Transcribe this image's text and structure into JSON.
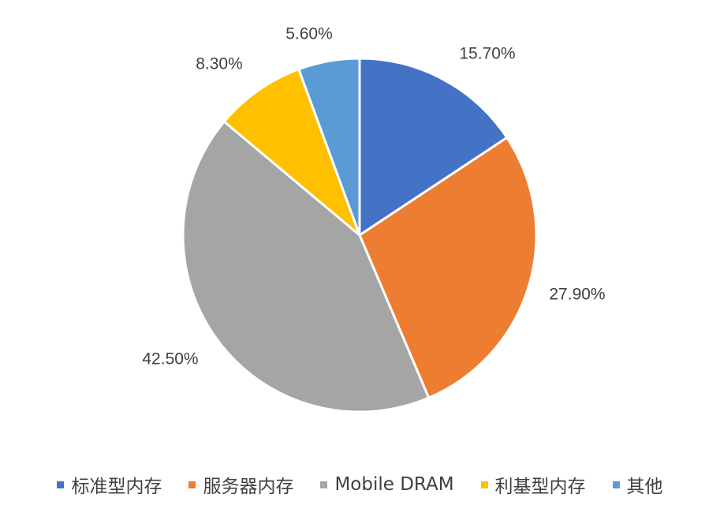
{
  "chart_data": {
    "type": "pie",
    "title": "",
    "start_angle_deg": 0,
    "direction": "clockwise",
    "slices": [
      {
        "label": "标准型内存",
        "value": 15.7,
        "display": "15.70%",
        "color": "#4472C4"
      },
      {
        "label": "服务器内存",
        "value": 27.9,
        "display": "27.90%",
        "color": "#ED7D31"
      },
      {
        "label": "Mobile DRAM",
        "value": 42.5,
        "display": "42.50%",
        "color": "#A5A5A5"
      },
      {
        "label": "利基型内存",
        "value": 8.3,
        "display": "8.30%",
        "color": "#FFC000"
      },
      {
        "label": "其他",
        "value": 5.6,
        "display": "5.60%",
        "color": "#5B9BD5"
      }
    ],
    "legend": {
      "position": "bottom"
    }
  }
}
